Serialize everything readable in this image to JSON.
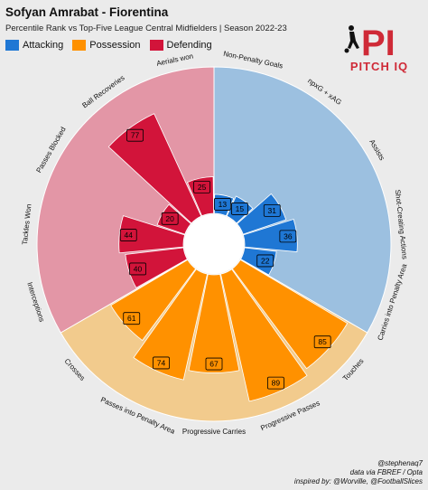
{
  "header": {
    "title": "Sofyan Amrabat - Fiorentina",
    "subtitle": "Percentile Rank vs Top-Five League Central Midfielders | Season 2022-23"
  },
  "legend": [
    {
      "label": "Attacking",
      "color": "#1f77d4"
    },
    {
      "label": "Possession",
      "color": "#ff9100"
    },
    {
      "label": "Defending",
      "color": "#d2143a"
    }
  ],
  "logo": {
    "mark": "PI",
    "text": "PITCH IQ",
    "icon": "soccer-player-icon"
  },
  "credits": {
    "line1": "@stephenaq7",
    "line2": "data via FBREF / Opta",
    "line3": "inspired by: @Worville, @FootballSlices"
  },
  "chart_data": {
    "type": "polar-bar",
    "title": "Sofyan Amrabat - Fiorentina",
    "subtitle": "Percentile Rank vs Top-Five League Central Midfielders | Season 2022-23",
    "range": [
      0,
      100
    ],
    "categories": [
      {
        "name": "Non-Penalty Goals",
        "value": 13,
        "group": "Attacking"
      },
      {
        "name": "npxG + xAG",
        "value": 15,
        "group": "Attacking"
      },
      {
        "name": "Assists",
        "value": 31,
        "group": "Attacking"
      },
      {
        "name": "Shot-Creating Actions",
        "value": 36,
        "group": "Attacking"
      },
      {
        "name": "Carries into Penalty Area",
        "value": 22,
        "group": "Attacking"
      },
      {
        "name": "Touches",
        "value": 85,
        "group": "Possession"
      },
      {
        "name": "Progressive Passes",
        "value": 89,
        "group": "Possession"
      },
      {
        "name": "Progressive Carries",
        "value": 67,
        "group": "Possession"
      },
      {
        "name": "Passes into Penalty Area",
        "value": 74,
        "group": "Possession"
      },
      {
        "name": "Crosses",
        "value": 61,
        "group": "Possession"
      },
      {
        "name": "Interceptions",
        "value": 40,
        "group": "Defending"
      },
      {
        "name": "Tackles Won",
        "value": 44,
        "group": "Defending"
      },
      {
        "name": "Passes Blocked",
        "value": 20,
        "group": "Defending"
      },
      {
        "name": "Ball Recoveries",
        "value": 77,
        "group": "Defending"
      },
      {
        "name": "Aerials won",
        "value": 25,
        "group": "Defending"
      }
    ],
    "group_colors": {
      "Attacking": {
        "bar": "#1f77d4",
        "background": "#9cc0e0"
      },
      "Possession": {
        "bar": "#ff9100",
        "background": "#f2cb8d"
      },
      "Defending": {
        "bar": "#d2143a",
        "background": "#e396a6"
      }
    }
  }
}
